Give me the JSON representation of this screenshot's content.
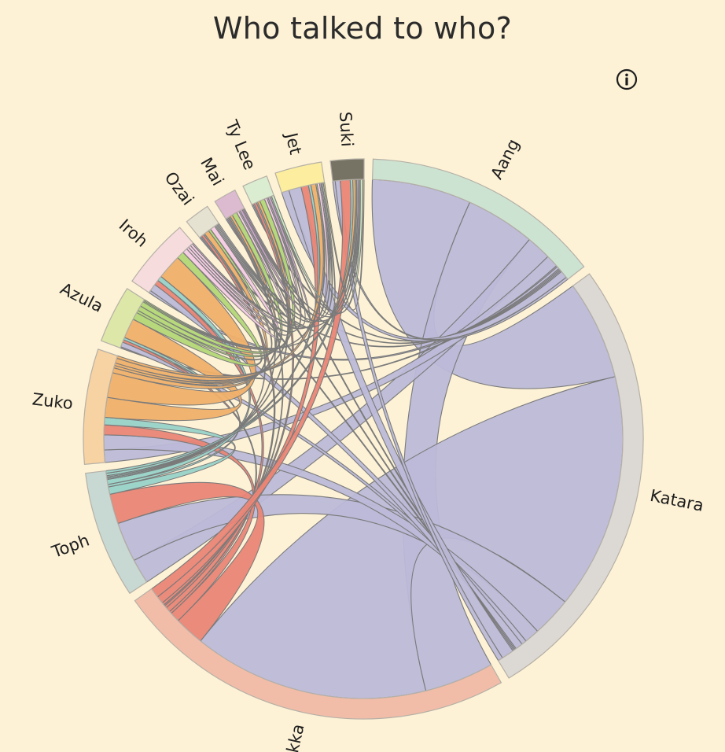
{
  "page": {
    "title": "Who talked to who?"
  },
  "info_button": {
    "icon": "info-circle-icon"
  },
  "chart_data": {
    "type": "chord",
    "title": "Who talked to who?",
    "groups": [
      {
        "name": "Aang",
        "arc_color": "#cde3d2",
        "ribbon_color": "#bcb9d8"
      },
      {
        "name": "Katara",
        "arc_color": "#dcd8d4",
        "ribbon_color": "#bcb9d8"
      },
      {
        "name": "Sokka",
        "arc_color": "#f2bda8",
        "ribbon_color": "#ea8576"
      },
      {
        "name": "Toph",
        "arc_color": "#c8d8d3",
        "ribbon_color": "#98d2c8"
      },
      {
        "name": "Zuko",
        "arc_color": "#f7d2a2",
        "ribbon_color": "#f0b06a"
      },
      {
        "name": "Azula",
        "arc_color": "#dce7a8",
        "ribbon_color": "#b3d777"
      },
      {
        "name": "Iroh",
        "arc_color": "#f7dcdd",
        "ribbon_color": "#f4cbe5"
      },
      {
        "name": "Ozai",
        "arc_color": "#e6e2d2",
        "ribbon_color": "#d4d4d4"
      },
      {
        "name": "Mai",
        "arc_color": "#dcbad0",
        "ribbon_color": "#c8a0c8"
      },
      {
        "name": "Ty Lee",
        "arc_color": "#daedd0",
        "ribbon_color": "#cbe8c4"
      },
      {
        "name": "Jet",
        "arc_color": "#fcee9e",
        "ribbon_color": "#f9e98a"
      },
      {
        "name": "Suki",
        "arc_color": "#767264",
        "ribbon_color": "#8f8b7c"
      }
    ],
    "matrix": [
      [
        0,
        40,
        28,
        10,
        5,
        0.5,
        1,
        0.5,
        0.5,
        0.5,
        3,
        1
      ],
      [
        40,
        0,
        95,
        16,
        6,
        2,
        3,
        0.5,
        0.5,
        0.5,
        5,
        2
      ],
      [
        28,
        95,
        0,
        12,
        4,
        1,
        2,
        1,
        0.5,
        1,
        3,
        4
      ],
      [
        10,
        16,
        12,
        0,
        3,
        1,
        2,
        0.5,
        0.5,
        0.5,
        1,
        1
      ],
      [
        5,
        6,
        4,
        3,
        0,
        8,
        10,
        2,
        1,
        1,
        2,
        1
      ],
      [
        0.5,
        2,
        1,
        1,
        8,
        0,
        3,
        1,
        2,
        2,
        0.5,
        0.5
      ],
      [
        1,
        3,
        2,
        2,
        10,
        3,
        0,
        2,
        1,
        1,
        1,
        0.5
      ],
      [
        0.5,
        0.5,
        1,
        0.5,
        2,
        1,
        2,
        0,
        0.5,
        0.5,
        0.5,
        0.5
      ],
      [
        0.5,
        0.5,
        0.5,
        0.5,
        1,
        2,
        1,
        0.5,
        0,
        1,
        0.5,
        0.5
      ],
      [
        0.5,
        0.5,
        1,
        0.5,
        1,
        2,
        1,
        0.5,
        1,
        0,
        0.5,
        1
      ],
      [
        3,
        5,
        3,
        1,
        2,
        0.5,
        1,
        0.5,
        0.5,
        0.5,
        0,
        0.5
      ],
      [
        1,
        2,
        4,
        1,
        1,
        0.5,
        0.5,
        0.5,
        0.5,
        1,
        0.5,
        0
      ]
    ]
  }
}
